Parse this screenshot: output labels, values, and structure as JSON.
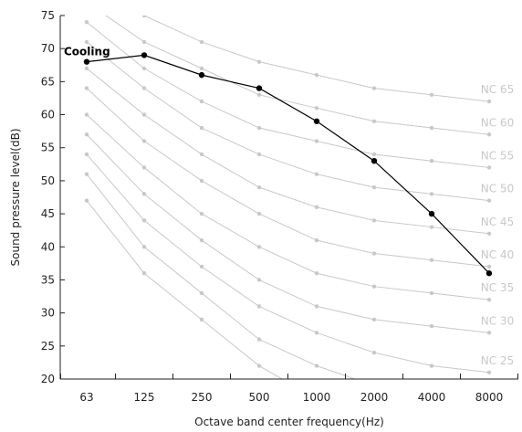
{
  "chart_data": {
    "type": "line",
    "xlabel": "Octave band center frequency(Hz)",
    "ylabel": "Sound pressure level(dB)",
    "categories": [
      "63",
      "125",
      "250",
      "500",
      "1000",
      "2000",
      "4000",
      "8000"
    ],
    "ylim": [
      20,
      75
    ],
    "yticks": [
      20,
      25,
      30,
      35,
      40,
      45,
      50,
      55,
      60,
      65,
      70,
      75
    ],
    "grid": false,
    "series": [
      {
        "name": "Cooling",
        "values": [
          68,
          69,
          66,
          64,
          59,
          53,
          45,
          36
        ],
        "color": "#000000",
        "markers": true
      }
    ],
    "reference_curves": [
      {
        "name": "NC 25",
        "values": [
          54,
          44,
          37,
          31,
          27,
          24,
          22,
          21
        ]
      },
      {
        "name": "NC 30",
        "values": [
          57,
          48,
          41,
          35,
          31,
          29,
          28,
          27
        ]
      },
      {
        "name": "NC 35",
        "values": [
          60,
          52,
          45,
          40,
          36,
          34,
          33,
          32
        ]
      },
      {
        "name": "NC 40",
        "values": [
          64,
          56,
          50,
          45,
          41,
          39,
          38,
          37
        ]
      },
      {
        "name": "NC 45",
        "values": [
          67,
          60,
          54,
          49,
          46,
          44,
          43,
          42
        ]
      },
      {
        "name": "NC 50",
        "values": [
          71,
          64,
          58,
          54,
          51,
          49,
          48,
          47
        ]
      },
      {
        "name": "NC 55",
        "values": [
          74,
          67,
          62,
          58,
          56,
          54,
          53,
          52
        ]
      },
      {
        "name": "NC 60",
        "values": [
          77,
          71,
          67,
          63,
          61,
          59,
          58,
          57
        ]
      },
      {
        "name": "NC 65",
        "values": [
          80,
          75,
          71,
          68,
          66,
          64,
          63,
          62
        ]
      },
      {
        "name": "",
        "values": [
          51,
          40,
          33,
          26,
          22,
          19,
          18,
          17
        ]
      },
      {
        "name": "",
        "values": [
          47,
          36,
          29,
          22,
          17,
          14,
          12,
          11
        ]
      }
    ],
    "reference_color": "#c8c8c8"
  }
}
